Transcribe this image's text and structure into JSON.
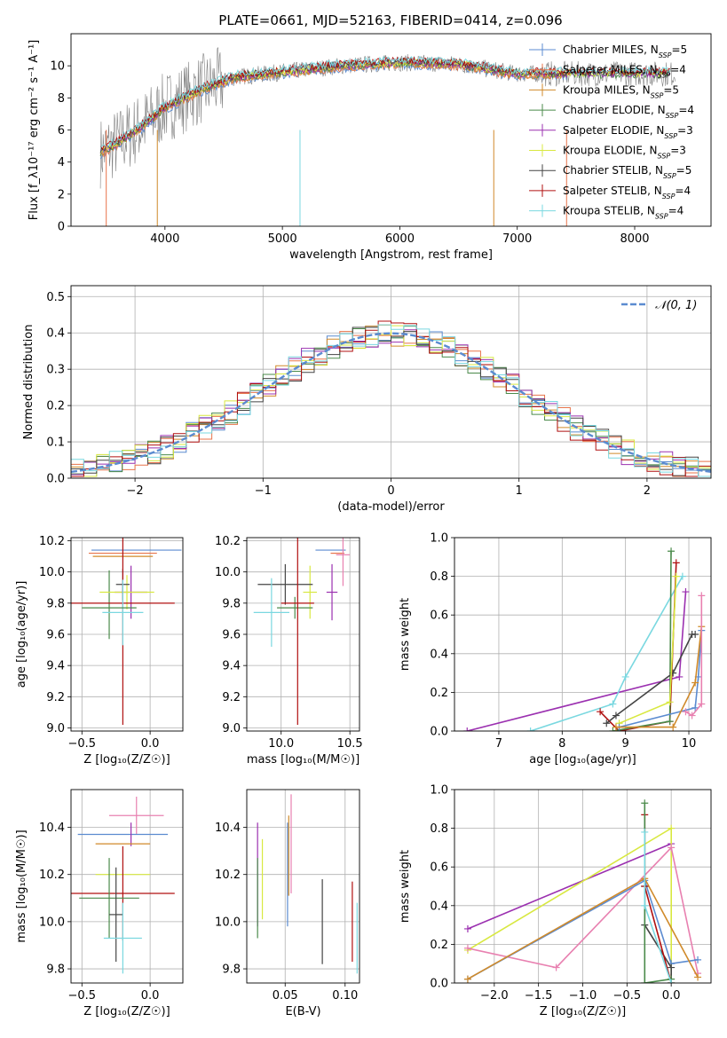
{
  "title": "PLATE=0661, MJD=52163, FIBERID=0414, z=0.096",
  "colors": {
    "Chabrier MILES": "#5b8bd0",
    "Salpeter MILES": "#e8734a",
    "Kroupa MILES": "#d08a2a",
    "Chabrier ELODIE": "#4a8a4a",
    "Salpeter ELODIE": "#9b30b0",
    "Kroupa ELODIE": "#d8e840",
    "Chabrier STELIB": "#444444",
    "Salpeter STELIB": "#b01010",
    "Kroupa STELIB": "#7ad8e0",
    "extra": "#e880b0",
    "gauss": "#5b8bd0"
  },
  "chart_data": [
    {
      "id": "spectrum",
      "type": "line",
      "xlabel": "wavelength [Angstrom, rest frame]",
      "ylabel": "Flux [f_λ10⁻¹⁷ erg cm⁻² s⁻¹ A⁻¹]",
      "xlim": [
        3200,
        8650
      ],
      "ylim": [
        0,
        12
      ],
      "xticks": [
        4000,
        5000,
        6000,
        7000,
        8000
      ],
      "yticks": [
        0,
        2,
        4,
        6,
        8,
        10
      ],
      "grid": false,
      "legend_position": "upper-right",
      "series_names": [
        "Chabrier MILES, N_SSP=5",
        "Salpeter MILES, N_SSP=4",
        "Kroupa MILES, N_SSP=5",
        "Chabrier ELODIE, N_SSP=4",
        "Salpeter ELODIE, N_SSP=3",
        "Kroupa ELODIE, N_SSP=3",
        "Chabrier STELIB, N_SSP=5",
        "Salpeter STELIB, N_SSP=4",
        "Kroupa STELIB, N_SSP=4"
      ],
      "continuum_x": [
        3450,
        3600,
        3800,
        4000,
        4300,
        4600,
        5000,
        5500,
        6000,
        6500,
        7000,
        7400
      ],
      "continuum_y": [
        4.6,
        5.2,
        6.2,
        7.4,
        8.5,
        9.3,
        9.6,
        10.0,
        10.2,
        10.1,
        9.5,
        9.5
      ]
    },
    {
      "id": "residuals",
      "type": "line",
      "xlabel": "(data-model)/error",
      "ylabel": "Normed distribution",
      "xlim": [
        -2.5,
        2.5
      ],
      "ylim": [
        0,
        0.53
      ],
      "xticks": [
        -2,
        -1,
        0,
        1,
        2
      ],
      "yticks": [
        0.0,
        0.1,
        0.2,
        0.3,
        0.4,
        0.5
      ],
      "grid": true,
      "legend_position": "upper-right",
      "legend": "𝒩(0, 1)",
      "gaussian": {
        "mean": 0,
        "sigma": 1
      }
    },
    {
      "id": "z-age",
      "type": "scatter",
      "xlabel": "Z [log₁₀(Z/Z☉)]",
      "ylabel": "age  [log₁₀(age/yr)]",
      "xlim": [
        -0.58,
        0.24
      ],
      "ylim": [
        8.98,
        10.22
      ],
      "xticks": [
        -0.5,
        0.0
      ],
      "yticks": [
        9.0,
        9.2,
        9.4,
        9.6,
        9.8,
        10.0,
        10.2
      ],
      "grid": true,
      "points": [
        {
          "c": "Chabrier MILES",
          "x": -0.1,
          "y": 10.14,
          "xe": 0.33,
          "ye": 0.0
        },
        {
          "c": "Salpeter MILES",
          "x": -0.2,
          "y": 10.12,
          "xe": 0.25,
          "ye": 0.0
        },
        {
          "c": "Kroupa MILES",
          "x": -0.2,
          "y": 10.1,
          "xe": 0.22,
          "ye": 0.0
        },
        {
          "c": "Chabrier ELODIE",
          "x": -0.3,
          "y": 9.79,
          "xe": 0.0,
          "ye": 0.22
        },
        {
          "c": "Salpeter ELODIE",
          "x": -0.14,
          "y": 9.87,
          "xe": 0.12,
          "ye": 0.17
        },
        {
          "c": "Kroupa ELODIE",
          "x": -0.17,
          "y": 9.87,
          "xe": 0.2,
          "ye": 0.11
        },
        {
          "c": "Chabrier STELIB",
          "x": -0.2,
          "y": 9.92,
          "xe": 0.05,
          "ye": 0.1
        },
        {
          "c": "Salpeter STELIB",
          "x": -0.2,
          "y": 9.8,
          "xe": 0.38,
          "ye": 0.78
        },
        {
          "c": "Kroupa STELIB",
          "x": -0.2,
          "y": 9.74,
          "xe": 0.15,
          "ye": 0.21
        },
        {
          "c": "Chabrier ELODIE",
          "x": -0.3,
          "y": 9.77,
          "xe": 0.2,
          "ye": 0.0
        }
      ]
    },
    {
      "id": "mass-age",
      "type": "scatter",
      "xlabel": "mass [log₁₀(M/M☉)]",
      "ylabel": "",
      "xlim": [
        9.75,
        10.57
      ],
      "ylim": [
        8.98,
        10.22
      ],
      "xticks": [
        10.0,
        10.5
      ],
      "yticks": [
        9.0,
        9.2,
        9.4,
        9.6,
        9.8,
        10.0,
        10.2
      ],
      "grid": true,
      "points": [
        {
          "c": "Chabrier MILES",
          "x": 10.36,
          "y": 10.14,
          "xe": 0.11,
          "ye": 0.0
        },
        {
          "c": "Salpeter MILES",
          "x": 10.41,
          "y": 10.12,
          "xe": 0.05,
          "ye": 0.0
        },
        {
          "c": "extra",
          "x": 10.45,
          "y": 10.11,
          "xe": 0.05,
          "ye": 0.2
        },
        {
          "c": "Kroupa ELODIE",
          "x": 10.21,
          "y": 9.87,
          "xe": 0.05,
          "ye": 0.17
        },
        {
          "c": "Salpeter ELODIE",
          "x": 10.37,
          "y": 9.87,
          "xe": 0.04,
          "ye": 0.18
        },
        {
          "c": "Chabrier STELIB",
          "x": 10.03,
          "y": 9.92,
          "xe": 0.2,
          "ye": 0.13
        },
        {
          "c": "Chabrier ELODIE",
          "x": 10.1,
          "y": 9.77,
          "xe": 0.13,
          "ye": 0.07
        },
        {
          "c": "Salpeter STELIB",
          "x": 10.12,
          "y": 9.8,
          "xe": 0.12,
          "ye": 0.78
        },
        {
          "c": "Kroupa STELIB",
          "x": 9.93,
          "y": 9.74,
          "xe": 0.13,
          "ye": 0.22
        }
      ]
    },
    {
      "id": "age-weight",
      "type": "line",
      "xlabel": "age  [log₁₀(age/yr)]",
      "ylabel": "mass weight",
      "xlim": [
        6.3,
        10.35
      ],
      "ylim": [
        0,
        1.0
      ],
      "xticks": [
        7,
        8,
        9,
        10
      ],
      "yticks": [
        0.0,
        0.2,
        0.4,
        0.6,
        0.8,
        1.0
      ],
      "grid": true,
      "series": [
        {
          "c": "Salpeter ELODIE",
          "x": [
            6.5,
            9.85,
            9.95
          ],
          "y": [
            0.0,
            0.28,
            0.72
          ]
        },
        {
          "c": "Kroupa STELIB",
          "x": [
            7.5,
            8.8,
            9.0,
            9.9
          ],
          "y": [
            0.0,
            0.14,
            0.28,
            0.8
          ]
        },
        {
          "c": "Salpeter STELIB",
          "x": [
            8.6,
            8.9,
            9.7,
            9.8
          ],
          "y": [
            0.1,
            0.0,
            0.05,
            0.87
          ]
        },
        {
          "c": "Chabrier ELODIE",
          "x": [
            8.8,
            9.7,
            9.72
          ],
          "y": [
            0.0,
            0.05,
            0.93
          ]
        },
        {
          "c": "Chabrier STELIB",
          "x": [
            8.7,
            8.85,
            9.75,
            10.05,
            10.1
          ],
          "y": [
            0.04,
            0.08,
            0.3,
            0.5,
            0.5
          ]
        },
        {
          "c": "Kroupa ELODIE",
          "x": [
            8.9,
            9.7,
            9.8
          ],
          "y": [
            0.04,
            0.15,
            0.8
          ]
        },
        {
          "c": "Chabrier MILES",
          "x": [
            8.9,
            10.1,
            10.15,
            10.2
          ],
          "y": [
            0.02,
            0.12,
            0.28,
            0.52
          ]
        },
        {
          "c": "Kroupa MILES",
          "x": [
            8.85,
            9.75,
            10.1,
            10.2
          ],
          "y": [
            0.02,
            0.02,
            0.25,
            0.54
          ]
        },
        {
          "c": "extra",
          "x": [
            9.95,
            10.05,
            10.2,
            10.2
          ],
          "y": [
            0.1,
            0.08,
            0.14,
            0.7
          ]
        }
      ]
    },
    {
      "id": "z-mass",
      "type": "scatter",
      "xlabel": "Z [log₁₀(Z/Z☉)]",
      "ylabel": "mass [log₁₀(M/M☉)]",
      "xlim": [
        -0.58,
        0.24
      ],
      "ylim": [
        9.74,
        10.56
      ],
      "xticks": [
        -0.5,
        0.0
      ],
      "yticks": [
        9.8,
        10.0,
        10.2,
        10.4
      ],
      "grid": true,
      "points": [
        {
          "c": "extra",
          "x": -0.1,
          "y": 10.45,
          "xe": 0.2,
          "ye": 0.08
        },
        {
          "c": "Chabrier MILES",
          "x": -0.2,
          "y": 10.37,
          "xe": 0.33,
          "ye": 0.0
        },
        {
          "c": "Salpeter ELODIE",
          "x": -0.14,
          "y": 10.37,
          "xe": 0.0,
          "ye": 0.05
        },
        {
          "c": "Kroupa MILES",
          "x": -0.2,
          "y": 10.33,
          "xe": 0.2,
          "ye": 0.0
        },
        {
          "c": "Kroupa ELODIE",
          "x": -0.2,
          "y": 10.2,
          "xe": 0.2,
          "ye": 0.0
        },
        {
          "c": "Salpeter STELIB",
          "x": -0.2,
          "y": 10.12,
          "xe": 0.38,
          "ye": 0.2
        },
        {
          "c": "Chabrier ELODIE",
          "x": -0.3,
          "y": 10.1,
          "xe": 0.22,
          "ye": 0.17
        },
        {
          "c": "Chabrier STELIB",
          "x": -0.25,
          "y": 10.03,
          "xe": 0.05,
          "ye": 0.2
        },
        {
          "c": "Kroupa STELIB",
          "x": -0.2,
          "y": 9.93,
          "xe": 0.14,
          "ye": 0.15
        }
      ]
    },
    {
      "id": "ebv-mass",
      "type": "scatter",
      "xlabel": "E(B-V)",
      "ylabel": "",
      "xlim": [
        0.018,
        0.112
      ],
      "ylim": [
        9.74,
        10.56
      ],
      "xticks": [
        0.05,
        0.1
      ],
      "yticks": [
        9.8,
        10.0,
        10.2,
        10.4
      ],
      "grid": true,
      "points": [
        {
          "c": "Salpeter ELODIE",
          "x": 0.027,
          "y": 10.2,
          "xe": 0,
          "ye": 0.22
        },
        {
          "c": "Chabrier ELODIE",
          "x": 0.027,
          "y": 10.1,
          "xe": 0,
          "ye": 0.17
        },
        {
          "c": "Kroupa ELODIE",
          "x": 0.031,
          "y": 10.18,
          "xe": 0,
          "ye": 0.17
        },
        {
          "c": "Chabrier MILES",
          "x": 0.052,
          "y": 10.2,
          "xe": 0,
          "ye": 0.22
        },
        {
          "c": "Kroupa MILES",
          "x": 0.053,
          "y": 10.28,
          "xe": 0,
          "ye": 0.17
        },
        {
          "c": "extra",
          "x": 0.055,
          "y": 10.33,
          "xe": 0,
          "ye": 0.21
        },
        {
          "c": "Chabrier STELIB",
          "x": 0.081,
          "y": 10.0,
          "xe": 0,
          "ye": 0.18
        },
        {
          "c": "Salpeter STELIB",
          "x": 0.106,
          "y": 10.0,
          "xe": 0,
          "ye": 0.17
        },
        {
          "c": "Kroupa STELIB",
          "x": 0.11,
          "y": 9.93,
          "xe": 0,
          "ye": 0.15
        }
      ]
    },
    {
      "id": "z-weight",
      "type": "line",
      "xlabel": "Z [log₁₀(Z/Z☉)]",
      "ylabel": "mass weight",
      "xlim": [
        -2.45,
        0.45
      ],
      "ylim": [
        0,
        1.0
      ],
      "xticks": [
        -2.0,
        -1.5,
        -1.0,
        -0.5,
        0.0
      ],
      "yticks": [
        0.0,
        0.2,
        0.4,
        0.6,
        0.8,
        1.0
      ],
      "grid": true,
      "series": [
        {
          "c": "Salpeter ELODIE",
          "x": [
            -2.3,
            0.0
          ],
          "y": [
            0.28,
            0.72
          ]
        },
        {
          "c": "Kroupa ELODIE",
          "x": [
            -2.3,
            0.0,
            0.0
          ],
          "y": [
            0.17,
            0.8,
            0.0
          ]
        },
        {
          "c": "extra",
          "x": [
            -2.3,
            -1.3,
            0.0,
            0.3
          ],
          "y": [
            0.18,
            0.08,
            0.7,
            0.05
          ]
        },
        {
          "c": "Chabrier MILES",
          "x": [
            -2.3,
            -0.3,
            0.0,
            0.3
          ],
          "y": [
            0.02,
            0.53,
            0.1,
            0.12
          ]
        },
        {
          "c": "Kroupa MILES",
          "x": [
            -2.3,
            -0.3,
            0.3
          ],
          "y": [
            0.02,
            0.54,
            0.03
          ]
        },
        {
          "c": "Chabrier STELIB",
          "x": [
            -0.3,
            -0.3,
            0.0,
            0.0
          ],
          "y": [
            0.5,
            0.3,
            0.08,
            0.0
          ]
        },
        {
          "c": "Salpeter STELIB",
          "x": [
            -0.3,
            -0.3,
            0.0
          ],
          "y": [
            0.87,
            0.5,
            0.0
          ]
        },
        {
          "c": "Chabrier ELODIE",
          "x": [
            -0.3,
            -0.3,
            0.0
          ],
          "y": [
            0.93,
            0.0,
            0.02
          ]
        },
        {
          "c": "Kroupa STELIB",
          "x": [
            -0.3,
            -0.3,
            0.0
          ],
          "y": [
            0.78,
            0.4,
            0.0
          ]
        }
      ]
    }
  ]
}
